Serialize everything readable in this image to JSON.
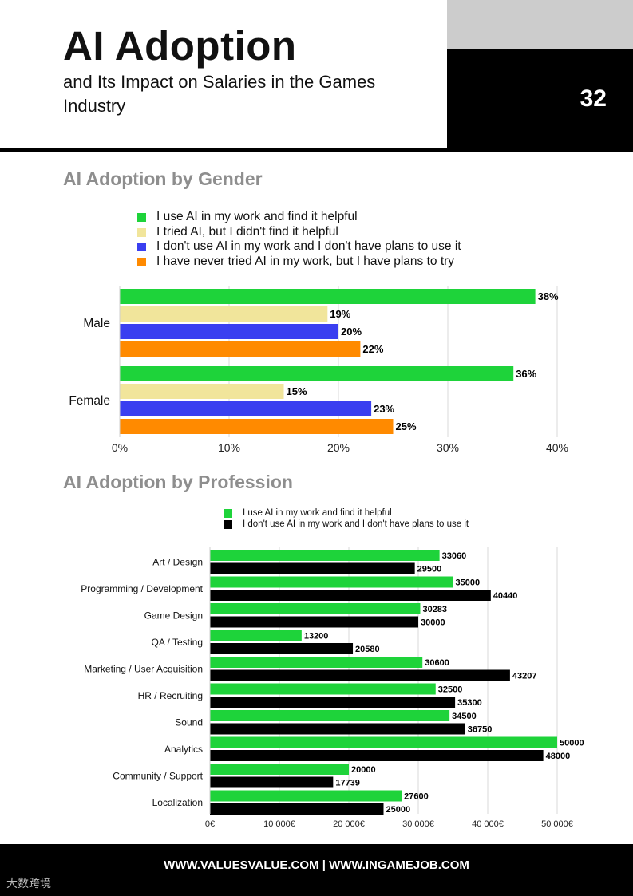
{
  "header": {
    "title": "AI Adoption",
    "subtitle": "and Its Impact on Salaries in the Games Industry",
    "page_number": "32"
  },
  "gender_section": {
    "title": "AI Adoption by Gender",
    "legend": [
      {
        "label": "I use AI in my work and find it helpful",
        "color": "#1ed33a"
      },
      {
        "label": "I tried AI, but I didn't find it helpful",
        "color": "#f1e59b"
      },
      {
        "label": "I don't use AI in my work and I don't have plans to use it",
        "color": "#3a3ff0"
      },
      {
        "label": "I have never tried AI in my work, but I have plans to try",
        "color": "#ff8a00"
      }
    ]
  },
  "profession_section": {
    "title": "AI Adoption by Profession",
    "legend": [
      {
        "label": "I use AI in my work and find it helpful",
        "color": "#1ed33a"
      },
      {
        "label": "I don't use AI in my work and I don't have plans to use it",
        "color": "#000000"
      }
    ]
  },
  "chart_data": [
    {
      "type": "bar",
      "orientation": "horizontal",
      "title": "AI Adoption by Gender",
      "categories": [
        "Male",
        "Female"
      ],
      "series": [
        {
          "name": "I use AI in my work and find it helpful",
          "values": [
            38,
            36
          ],
          "labels": [
            "38%",
            "36%"
          ],
          "color": "#1ed33a"
        },
        {
          "name": "I tried AI, but I didn't find it helpful",
          "values": [
            19,
            15
          ],
          "labels": [
            "19%",
            "15%"
          ],
          "color": "#f1e59b"
        },
        {
          "name": "I don't use AI in my work and I don't have plans to use it",
          "values": [
            20,
            23
          ],
          "labels": [
            "20%",
            "23%"
          ],
          "color": "#3a3ff0"
        },
        {
          "name": "I have never tried AI in my work, but I have plans to try",
          "values": [
            22,
            25
          ],
          "labels": [
            "22%",
            "25%"
          ],
          "color": "#ff8a00"
        }
      ],
      "xlim": [
        0,
        40
      ],
      "xticks": [
        0,
        10,
        20,
        30,
        40
      ],
      "xtick_labels": [
        "0%",
        "10%",
        "20%",
        "30%",
        "40%"
      ],
      "grid": true,
      "legend_position": "top"
    },
    {
      "type": "bar",
      "orientation": "horizontal",
      "title": "AI Adoption by Profession",
      "categories": [
        "Art / Design",
        "Programming / Development",
        "Game Design",
        "QA / Testing",
        "Marketing / User Acquisition",
        "HR / Recruiting",
        "Sound",
        "Analytics",
        "Community / Support",
        "Localization"
      ],
      "series": [
        {
          "name": "I use AI in my work and find it helpful",
          "values": [
            33060,
            35000,
            30283,
            13200,
            30600,
            32500,
            34500,
            50000,
            20000,
            27600
          ],
          "labels": [
            "33060",
            "35000",
            "30283",
            "13200",
            "30600",
            "32500",
            "34500",
            "50000",
            "20000",
            "27600"
          ],
          "color": "#1ed33a"
        },
        {
          "name": "I don't use AI in my work and I don't have plans to use it",
          "values": [
            29500,
            40440,
            30000,
            20580,
            43207,
            35300,
            36750,
            48000,
            17739,
            25000
          ],
          "labels": [
            "29500",
            "40440",
            "30000",
            "20580",
            "43207",
            "35300",
            "36750",
            "48000",
            "17739",
            "25000"
          ],
          "color": "#000000"
        }
      ],
      "xlim": [
        0,
        50000
      ],
      "xticks": [
        0,
        10000,
        20000,
        30000,
        40000,
        50000
      ],
      "xtick_labels": [
        "0€",
        "10 000€",
        "20 000€",
        "30 000€",
        "40 000€",
        "50 000€"
      ],
      "grid": true,
      "legend_position": "top"
    }
  ],
  "footer": {
    "link1": "WWW.VALUESVALUE.COM",
    "separator": "|",
    "link2": "WWW.INGAMEJOB.COM"
  },
  "watermark": "大数跨境"
}
